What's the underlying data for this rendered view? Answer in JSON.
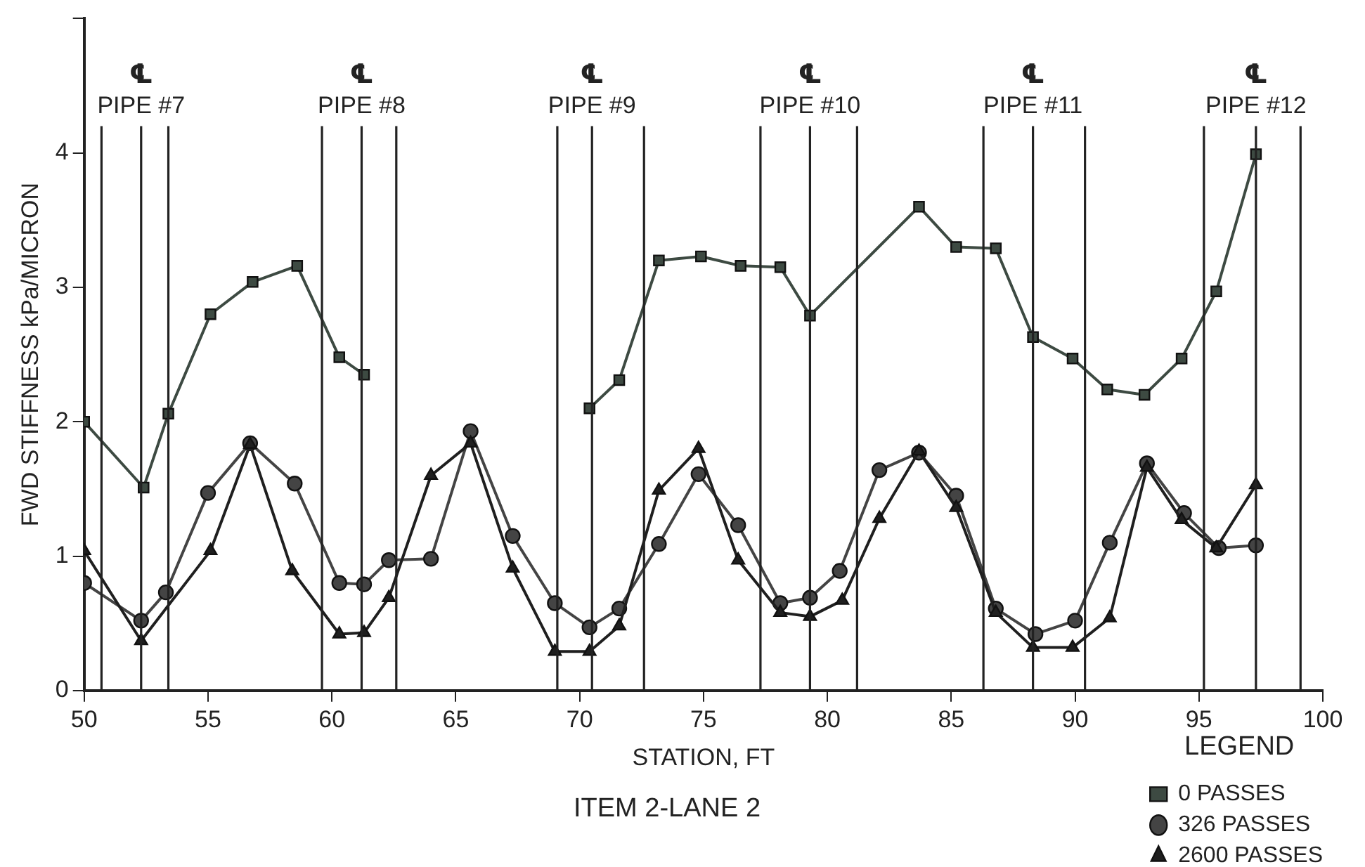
{
  "chart_data": {
    "type": "line",
    "xlabel": "STATION, FT",
    "ylabel": "FWD STIFFNESS kPa/MICRON",
    "title": "ITEM 2-LANE 2",
    "legend_title": "LEGEND",
    "legend": "bottom right",
    "grid": false,
    "line_style": "solid",
    "xlim": [
      50,
      100
    ],
    "xticks": [
      50,
      55,
      60,
      65,
      70,
      75,
      80,
      85,
      90,
      95,
      100
    ],
    "ylim": [
      0,
      5
    ],
    "yticks": [
      0,
      1,
      2,
      3,
      4,
      {
        "value": 5,
        "label": null
      }
    ],
    "series": [
      {
        "name": "0 PASSES",
        "color": "#3d4a42",
        "marker": "square",
        "x": [
          50,
          52.4,
          53.4,
          55.1,
          56.8,
          58.6,
          60.3,
          61.3,
          65.6,
          70.4,
          71.6,
          73.2,
          74.9,
          76.5,
          78.1,
          79.3,
          83.7,
          85.2,
          86.8,
          88.3,
          89.9,
          91.3,
          92.8,
          94.3,
          95.7,
          97.3
        ],
        "values": [
          2.0,
          1.51,
          2.06,
          2.8,
          3.04,
          3.16,
          2.48,
          2.35,
          null,
          2.1,
          2.31,
          3.2,
          3.23,
          3.16,
          3.15,
          2.79,
          3.6,
          3.3,
          3.29,
          2.63,
          2.47,
          2.24,
          2.2,
          2.47,
          2.97,
          3.99
        ]
      },
      {
        "name": "326 PASSES",
        "color": "#444444",
        "marker": "circle",
        "x": [
          50,
          52.3,
          53.3,
          55.0,
          56.7,
          58.5,
          60.3,
          61.3,
          62.3,
          64.0,
          65.6,
          67.3,
          69.0,
          70.4,
          71.6,
          73.2,
          74.8,
          76.4,
          78.1,
          79.3,
          80.5,
          82.1,
          83.7,
          85.2,
          86.8,
          88.4,
          90.0,
          91.4,
          92.9,
          94.4,
          95.8,
          97.3
        ],
        "values": [
          0.8,
          0.52,
          0.73,
          1.47,
          1.84,
          1.54,
          0.8,
          0.79,
          0.97,
          0.98,
          1.93,
          1.15,
          0.65,
          0.47,
          0.61,
          1.09,
          1.61,
          1.23,
          0.65,
          0.69,
          0.89,
          1.64,
          1.77,
          1.45,
          0.61,
          0.42,
          0.52,
          1.1,
          1.69,
          1.32,
          1.06,
          1.08
        ]
      },
      {
        "name": "2600 PASSES",
        "color": "#1f1f1f",
        "marker": "triangle",
        "x": [
          50,
          52.3,
          55.1,
          56.7,
          58.4,
          60.3,
          61.3,
          62.3,
          64.0,
          65.6,
          67.3,
          69.0,
          70.4,
          71.6,
          73.2,
          74.8,
          76.4,
          78.1,
          79.3,
          80.6,
          82.1,
          83.7,
          85.2,
          86.8,
          88.3,
          89.9,
          91.4,
          92.9,
          94.3,
          95.7,
          97.3
        ],
        "values": [
          1.04,
          0.37,
          1.04,
          1.83,
          0.89,
          0.42,
          0.43,
          0.69,
          1.6,
          1.84,
          0.91,
          0.29,
          0.29,
          0.48,
          1.49,
          1.8,
          0.97,
          0.58,
          0.55,
          0.67,
          1.28,
          1.78,
          1.36,
          0.58,
          0.32,
          0.32,
          0.54,
          1.66,
          1.27,
          1.06,
          1.53
        ]
      }
    ],
    "ref_lines": [
      {
        "axis": "x",
        "value": 50.7,
        "color": "#222222"
      },
      {
        "axis": "x",
        "value": 52.3,
        "label": "℄",
        "color": "#222222"
      },
      {
        "axis": "x",
        "value": 53.4,
        "color": "#222222"
      },
      {
        "axis": "x",
        "value": 59.6,
        "color": "#222222"
      },
      {
        "axis": "x",
        "value": 61.2,
        "label": "℄",
        "color": "#222222"
      },
      {
        "axis": "x",
        "value": 62.6,
        "color": "#222222"
      },
      {
        "axis": "x",
        "value": 69.1,
        "color": "#222222"
      },
      {
        "axis": "x",
        "value": 70.5,
        "label": "℄",
        "color": "#222222"
      },
      {
        "axis": "x",
        "value": 72.6,
        "color": "#222222"
      },
      {
        "axis": "x",
        "value": 77.3,
        "color": "#222222"
      },
      {
        "axis": "x",
        "value": 79.3,
        "label": "℄",
        "color": "#222222"
      },
      {
        "axis": "x",
        "value": 81.2,
        "color": "#222222"
      },
      {
        "axis": "x",
        "value": 86.3,
        "color": "#222222"
      },
      {
        "axis": "x",
        "value": 88.3,
        "label": "℄",
        "color": "#222222"
      },
      {
        "axis": "x",
        "value": 90.4,
        "color": "#222222"
      },
      {
        "axis": "x",
        "value": 95.2,
        "color": "#222222"
      },
      {
        "axis": "x",
        "value": 97.3,
        "label": "℄",
        "color": "#222222"
      },
      {
        "axis": "x",
        "value": 99.1,
        "color": "#222222"
      }
    ],
    "annotations": [
      "PIPE #7",
      "PIPE #8",
      "PIPE #9",
      "PIPE #10",
      "PIPE #11",
      "PIPE #12"
    ]
  }
}
